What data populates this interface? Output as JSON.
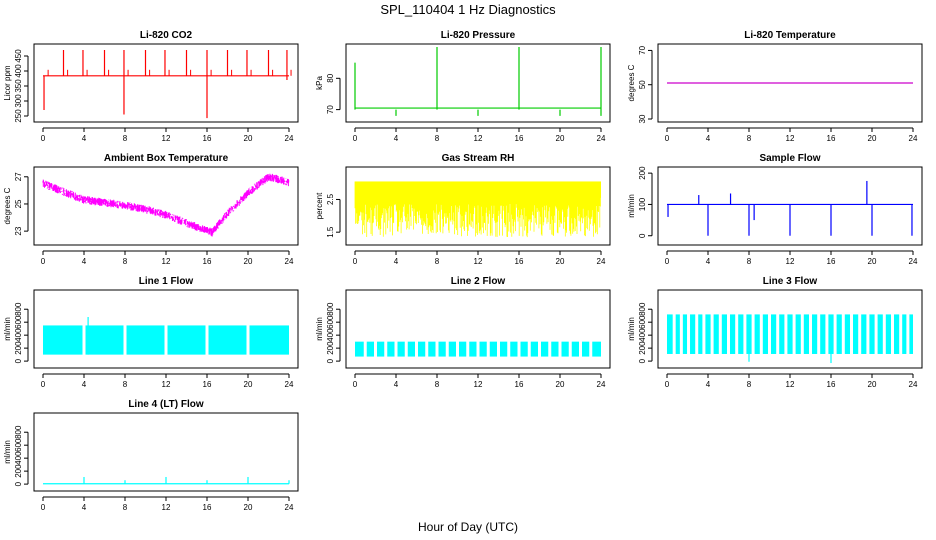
{
  "figure": {
    "title": "SPL_110404  1 Hz Diagnostics",
    "xlabel": "Hour of Day (UTC)"
  },
  "chart_data": [
    {
      "type": "line",
      "title": "Li-820 CO2",
      "ylabel": "Licor ppm",
      "color": "#ff0000",
      "xlim": [
        0,
        24
      ],
      "xticks": [
        0,
        4,
        8,
        12,
        16,
        20,
        24
      ],
      "ylim": [
        240,
        480
      ],
      "yticks": [
        250,
        300,
        350,
        400,
        450
      ],
      "baseline": 384,
      "events": [
        {
          "x": 0.1,
          "lo": 270,
          "hi": 384
        },
        {
          "x": 2.0,
          "lo": 384,
          "hi": 470
        },
        {
          "x": 3.9,
          "lo": 384,
          "hi": 470
        },
        {
          "x": 6.0,
          "lo": 384,
          "hi": 470
        },
        {
          "x": 7.9,
          "lo": 255,
          "hi": 470
        },
        {
          "x": 10.0,
          "lo": 384,
          "hi": 470
        },
        {
          "x": 11.9,
          "lo": 384,
          "hi": 470
        },
        {
          "x": 14.0,
          "lo": 384,
          "hi": 470
        },
        {
          "x": 16.0,
          "lo": 243,
          "hi": 470
        },
        {
          "x": 18.0,
          "lo": 384,
          "hi": 470
        },
        {
          "x": 19.9,
          "lo": 384,
          "hi": 470
        },
        {
          "x": 22.0,
          "lo": 384,
          "hi": 470
        },
        {
          "x": 23.8,
          "lo": 370,
          "hi": 470
        }
      ]
    },
    {
      "type": "line",
      "title": "Li-820 Pressure",
      "ylabel": "kPa",
      "color": "#00cc00",
      "xlim": [
        0,
        24
      ],
      "xticks": [
        0,
        4,
        8,
        12,
        16,
        20,
        24
      ],
      "ylim": [
        67,
        90
      ],
      "yticks": [
        70,
        80
      ],
      "baseline": 70.5,
      "events": [
        {
          "x": 0.0,
          "lo": 70,
          "hi": 85
        },
        {
          "x": 4.0,
          "lo": 68,
          "hi": 70
        },
        {
          "x": 8.0,
          "lo": 70,
          "hi": 90
        },
        {
          "x": 12.0,
          "lo": 68,
          "hi": 70
        },
        {
          "x": 16.0,
          "lo": 70,
          "hi": 90
        },
        {
          "x": 20.0,
          "lo": 68,
          "hi": 70
        },
        {
          "x": 24.0,
          "lo": 68,
          "hi": 90
        }
      ]
    },
    {
      "type": "line",
      "title": "Li-820 Temperature",
      "ylabel": "degrees C",
      "color": "#cc00cc",
      "xlim": [
        0,
        24
      ],
      "xticks": [
        0,
        4,
        8,
        12,
        16,
        20,
        24
      ],
      "ylim": [
        30,
        72
      ],
      "yticks": [
        30,
        50,
        70
      ],
      "baseline": 51,
      "events": []
    },
    {
      "type": "line",
      "title": "Ambient Box Temperature",
      "ylabel": "degrees C",
      "color": "#ff00ff",
      "xlim": [
        0,
        24
      ],
      "xticks": [
        0,
        4,
        8,
        12,
        16,
        20,
        24
      ],
      "ylim": [
        22.2,
        27.5
      ],
      "yticks": [
        23,
        25,
        27
      ],
      "x": [
        0,
        2,
        4,
        6,
        8,
        10,
        12,
        14,
        16.5,
        18,
        20,
        22,
        24
      ],
      "y": [
        26.5,
        25.9,
        25.3,
        25.1,
        24.9,
        24.6,
        24.2,
        23.6,
        22.9,
        24.3,
        25.8,
        27.0,
        26.6
      ],
      "band": 0.3
    },
    {
      "type": "area",
      "title": "Gas Stream RH",
      "ylabel": "percent",
      "color": "#ffff00",
      "xlim": [
        0,
        24
      ],
      "xticks": [
        0,
        4,
        8,
        12,
        16,
        20,
        24
      ],
      "ylim": [
        1.2,
        3.4
      ],
      "yticks": [
        1.5,
        2.5
      ],
      "upper": 3.05,
      "lower": 1.35,
      "dip_count": 60
    },
    {
      "type": "line",
      "title": "Sample Flow",
      "ylabel": "ml/min",
      "color": "#0000ff",
      "xlim": [
        0,
        24
      ],
      "xticks": [
        0,
        4,
        8,
        12,
        16,
        20,
        24
      ],
      "ylim": [
        -20,
        210
      ],
      "yticks": [
        0,
        100,
        200
      ],
      "baseline": 100,
      "events": [
        {
          "x": 0.1,
          "lo": 60,
          "hi": 100
        },
        {
          "x": 3.1,
          "lo": 100,
          "hi": 130
        },
        {
          "x": 4.0,
          "lo": 0,
          "hi": 100
        },
        {
          "x": 6.2,
          "lo": 100,
          "hi": 135
        },
        {
          "x": 8.0,
          "lo": 0,
          "hi": 100
        },
        {
          "x": 8.5,
          "lo": 50,
          "hi": 100
        },
        {
          "x": 12.0,
          "lo": 0,
          "hi": 100
        },
        {
          "x": 16.0,
          "lo": 0,
          "hi": 100
        },
        {
          "x": 19.5,
          "lo": 100,
          "hi": 175
        },
        {
          "x": 20.0,
          "lo": 0,
          "hi": 100
        },
        {
          "x": 23.9,
          "lo": 0,
          "hi": 100
        }
      ]
    },
    {
      "type": "area",
      "title": "Line 1 Flow",
      "ylabel": "ml/min",
      "color": "#00ffff",
      "xlim": [
        0,
        24
      ],
      "xticks": [
        0,
        4,
        8,
        12,
        16,
        20,
        24
      ],
      "ylim": [
        -60,
        1050
      ],
      "yticks": [
        0,
        200,
        400,
        600,
        800
      ],
      "upper": 550,
      "lower": 100,
      "gaps": [
        4.0,
        8.0,
        12.0,
        16.0,
        20.0
      ],
      "spikes": [
        {
          "x": 4.4,
          "y": 680
        }
      ]
    },
    {
      "type": "area",
      "title": "Line 2 Flow",
      "ylabel": "ml/min",
      "color": "#00ffff",
      "xlim": [
        0,
        24
      ],
      "xticks": [
        0,
        4,
        8,
        12,
        16,
        20,
        24
      ],
      "ylim": [
        -60,
        1050
      ],
      "yticks": [
        0,
        200,
        400,
        600,
        800
      ],
      "upper": 300,
      "lower": 70,
      "gaps": [
        1.0,
        2.0,
        3.0,
        4.0,
        5.0,
        6.0,
        7.0,
        8.0,
        9.0,
        10.0,
        11.0,
        12.0,
        13.0,
        14.0,
        15.0,
        16.0,
        17.0,
        18.0,
        19.0,
        20.0,
        21.0,
        22.0,
        23.0
      ],
      "spikes": []
    },
    {
      "type": "area",
      "title": "Line 3 Flow",
      "ylabel": "ml/min",
      "color": "#00ffff",
      "xlim": [
        0,
        24
      ],
      "xticks": [
        0,
        4,
        8,
        12,
        16,
        20,
        24
      ],
      "ylim": [
        -60,
        1050
      ],
      "yticks": [
        0,
        200,
        400,
        600,
        800
      ],
      "upper": 720,
      "lower": 110,
      "gaps": [
        0.7,
        1.4,
        2.1,
        2.9,
        3.6,
        4.4,
        5.2,
        6.0,
        6.8,
        7.6,
        8.4,
        9.2,
        10.0,
        10.8,
        11.6,
        12.4,
        13.2,
        14.0,
        14.8,
        15.6,
        16.4,
        17.2,
        18.0,
        18.8,
        19.6,
        20.4,
        21.2,
        22.0,
        22.8,
        23.5
      ],
      "spikes": [
        {
          "x": 8.0,
          "y": -10
        },
        {
          "x": 16.0,
          "y": -30
        }
      ]
    },
    {
      "type": "line",
      "title": "Line 4 (LT) Flow",
      "ylabel": "ml/min",
      "color": "#00ffff",
      "xlim": [
        0,
        24
      ],
      "xticks": [
        0,
        4,
        8,
        12,
        16,
        20,
        24
      ],
      "ylim": [
        -60,
        1050
      ],
      "yticks": [
        0,
        200,
        400,
        600,
        800
      ],
      "baseline": 5,
      "events": [
        {
          "x": 4.0,
          "lo": 5,
          "hi": 110
        },
        {
          "x": 8.0,
          "lo": 5,
          "hi": 60
        },
        {
          "x": 12.0,
          "lo": 5,
          "hi": 110
        },
        {
          "x": 16.0,
          "lo": 5,
          "hi": 60
        },
        {
          "x": 20.0,
          "lo": 5,
          "hi": 110
        },
        {
          "x": 24.0,
          "lo": 5,
          "hi": 60
        }
      ]
    }
  ]
}
